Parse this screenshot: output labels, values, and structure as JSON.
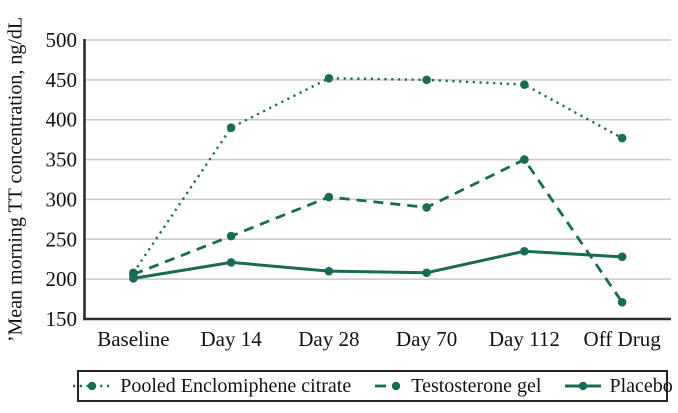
{
  "colors": {
    "accent": "#1a6a58",
    "grid": "#c9c9c9",
    "axis": "#2e2e2e",
    "text": "#111111"
  },
  "chart_data": {
    "type": "line",
    "title": "",
    "xlabel": "",
    "ylabel": "’Mean morning TT concentration, ng/dL",
    "categories": [
      "Baseline",
      "Day 14",
      "Day 28",
      "Day 70",
      "Day 112",
      "Off Drug"
    ],
    "ylim": [
      150,
      500
    ],
    "yticks": [
      150,
      200,
      250,
      300,
      350,
      400,
      450,
      500
    ],
    "grid": "horizontal",
    "legend_position": "bottom",
    "series": [
      {
        "name": "Pooled Enclomiphene citrate",
        "style": "dotted",
        "values": [
          208,
          390,
          452,
          450,
          444,
          377
        ]
      },
      {
        "name": "Testosterone gel",
        "style": "dashed",
        "values": [
          206,
          254,
          303,
          290,
          350,
          171
        ]
      },
      {
        "name": "Placebo",
        "style": "solid",
        "values": [
          201,
          221,
          210,
          208,
          235,
          228
        ]
      }
    ]
  }
}
